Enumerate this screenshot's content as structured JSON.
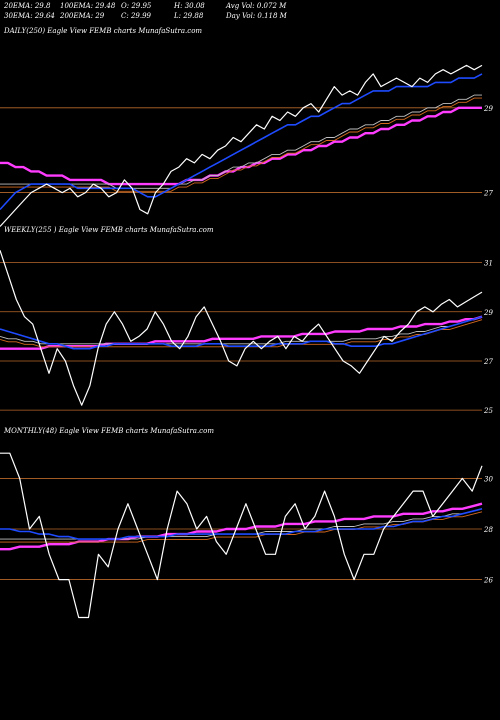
{
  "header": {
    "row1": [
      "20EMA: 29.8",
      "100EMA: 29.48",
      "O: 29.95",
      "H: 30.08",
      "Avg Vol: 0.072  M"
    ],
    "row2": [
      "30EMA: 29.64",
      "200EMA: 29",
      "C: 29.99",
      "L: 29.88",
      "Day Vol: 0.118  M"
    ]
  },
  "panels": {
    "daily": {
      "label": "DAILY(250) Eagle   View  FEMB charts MunafaSutra.com"
    },
    "weekly": {
      "label": "WEEKLY(255                ) Eagle   View  FEMB charts MunafaSutra.com"
    },
    "monthly": {
      "label": "MONTHLY(48) Eagle   View  FEMB charts MunafaSutra.com"
    }
  },
  "colors": {
    "background": "#000000",
    "price": "#ffffff",
    "ema_blue": "#1e4bff",
    "ema_pink": "#ff3cff",
    "ema_orange": "#d2691e",
    "gridline": "#b8682a",
    "ema_grey": "#c0c0c0"
  },
  "chart_data": [
    {
      "type": "line",
      "name": "daily",
      "ylim": [
        26.4,
        30.6
      ],
      "y_ticks": [
        29,
        27
      ],
      "series": [
        {
          "values": [
            26.2,
            26.4,
            26.6,
            26.8,
            27.0,
            27.1,
            27.2,
            27.1,
            27.0,
            27.1,
            26.9,
            27.0,
            27.2,
            27.1,
            26.9,
            27.0,
            27.3,
            27.1,
            26.6,
            26.5,
            27.0,
            27.2,
            27.5,
            27.6,
            27.8,
            27.7,
            27.9,
            27.8,
            28.0,
            28.1,
            28.3,
            28.2,
            28.4,
            28.6,
            28.5,
            28.8,
            28.7,
            28.9,
            28.8,
            29.0,
            29.1,
            28.9,
            29.2,
            29.5,
            29.3,
            29.4,
            29.3,
            29.6,
            29.8,
            29.5,
            29.6,
            29.7,
            29.6,
            29.5,
            29.7,
            29.6,
            29.8,
            29.9,
            29.8,
            29.9,
            30.0,
            29.9,
            30.0
          ]
        },
        {
          "values": [
            26.6,
            26.8,
            27.0,
            27.1,
            27.2,
            27.2,
            27.2,
            27.2,
            27.2,
            27.2,
            27.1,
            27.1,
            27.1,
            27.1,
            27.1,
            27.1,
            27.1,
            27.1,
            27.0,
            26.9,
            26.9,
            27.0,
            27.1,
            27.2,
            27.3,
            27.4,
            27.5,
            27.6,
            27.7,
            27.8,
            27.9,
            28.0,
            28.1,
            28.2,
            28.3,
            28.4,
            28.5,
            28.6,
            28.6,
            28.7,
            28.8,
            28.8,
            28.9,
            29.0,
            29.1,
            29.1,
            29.2,
            29.3,
            29.4,
            29.4,
            29.4,
            29.5,
            29.5,
            29.5,
            29.5,
            29.5,
            29.6,
            29.6,
            29.6,
            29.7,
            29.7,
            29.7,
            29.8
          ]
        },
        {
          "values": [
            27.2,
            27.2,
            27.2,
            27.2,
            27.2,
            27.2,
            27.2,
            27.2,
            27.2,
            27.2,
            27.2,
            27.2,
            27.2,
            27.2,
            27.2,
            27.1,
            27.1,
            27.1,
            27.1,
            27.1,
            27.1,
            27.1,
            27.1,
            27.2,
            27.2,
            27.3,
            27.3,
            27.4,
            27.4,
            27.5,
            27.6,
            27.6,
            27.7,
            27.7,
            27.8,
            27.9,
            27.9,
            28.0,
            28.0,
            28.1,
            28.2,
            28.2,
            28.3,
            28.3,
            28.4,
            28.5,
            28.5,
            28.6,
            28.6,
            28.7,
            28.7,
            28.8,
            28.8,
            28.9,
            28.9,
            29.0,
            29.0,
            29.1,
            29.1,
            29.2,
            29.2,
            29.3,
            29.3
          ]
        },
        {
          "values": [
            27.7,
            27.7,
            27.6,
            27.6,
            27.5,
            27.5,
            27.4,
            27.4,
            27.4,
            27.3,
            27.3,
            27.3,
            27.3,
            27.3,
            27.2,
            27.2,
            27.2,
            27.2,
            27.2,
            27.2,
            27.2,
            27.2,
            27.2,
            27.2,
            27.3,
            27.3,
            27.3,
            27.4,
            27.4,
            27.5,
            27.5,
            27.6,
            27.6,
            27.7,
            27.7,
            27.8,
            27.8,
            27.9,
            27.9,
            28.0,
            28.0,
            28.1,
            28.1,
            28.2,
            28.2,
            28.3,
            28.3,
            28.4,
            28.4,
            28.5,
            28.5,
            28.6,
            28.6,
            28.7,
            28.7,
            28.8,
            28.8,
            28.9,
            28.9,
            29.0,
            29.0,
            29.0,
            29.0
          ]
        }
      ]
    },
    {
      "type": "line",
      "name": "weekly",
      "ylim": [
        24.6,
        32.0
      ],
      "y_ticks": [
        31,
        29,
        27,
        25
      ],
      "series": [
        {
          "values": [
            31.5,
            30.5,
            29.5,
            28.8,
            28.5,
            27.5,
            26.5,
            27.5,
            27.0,
            26.0,
            25.2,
            26.0,
            27.5,
            28.5,
            29.0,
            28.5,
            27.8,
            28.0,
            28.3,
            29.0,
            28.5,
            27.8,
            27.5,
            28.0,
            28.8,
            29.2,
            28.5,
            27.8,
            27.0,
            26.8,
            27.5,
            27.8,
            27.5,
            27.8,
            28.0,
            27.5,
            28.0,
            27.8,
            28.2,
            28.5,
            28.0,
            27.5,
            27.0,
            26.8,
            26.5,
            27.0,
            27.5,
            28.0,
            27.8,
            28.2,
            28.5,
            29.0,
            29.2,
            29.0,
            29.3,
            29.5,
            29.2,
            29.4,
            29.6,
            29.8
          ]
        },
        {
          "values": [
            28.3,
            28.2,
            28.1,
            28.0,
            27.9,
            27.8,
            27.7,
            27.7,
            27.6,
            27.5,
            27.5,
            27.5,
            27.6,
            27.6,
            27.7,
            27.7,
            27.7,
            27.7,
            27.7,
            27.7,
            27.7,
            27.6,
            27.6,
            27.6,
            27.6,
            27.7,
            27.7,
            27.7,
            27.6,
            27.6,
            27.6,
            27.6,
            27.6,
            27.6,
            27.7,
            27.7,
            27.7,
            27.7,
            27.8,
            27.8,
            27.8,
            27.7,
            27.7,
            27.6,
            27.6,
            27.6,
            27.6,
            27.7,
            27.7,
            27.8,
            27.9,
            28.0,
            28.1,
            28.2,
            28.3,
            28.4,
            28.5,
            28.6,
            28.7,
            28.8
          ]
        },
        {
          "values": [
            28.0,
            27.9,
            27.9,
            27.8,
            27.8,
            27.7,
            27.7,
            27.7,
            27.7,
            27.7,
            27.7,
            27.7,
            27.7,
            27.7,
            27.7,
            27.7,
            27.7,
            27.7,
            27.7,
            27.7,
            27.7,
            27.7,
            27.7,
            27.7,
            27.7,
            27.7,
            27.7,
            27.7,
            27.7,
            27.7,
            27.7,
            27.7,
            27.7,
            27.7,
            27.7,
            27.8,
            27.8,
            27.8,
            27.8,
            27.8,
            27.8,
            27.8,
            27.8,
            27.9,
            27.9,
            27.9,
            27.9,
            28.0,
            28.0,
            28.1,
            28.1,
            28.2,
            28.2,
            28.3,
            28.4,
            28.4,
            28.5,
            28.6,
            28.7,
            28.8
          ]
        },
        {
          "values": [
            27.5,
            27.5,
            27.5,
            27.5,
            27.5,
            27.5,
            27.6,
            27.6,
            27.6,
            27.6,
            27.6,
            27.6,
            27.6,
            27.7,
            27.7,
            27.7,
            27.7,
            27.7,
            27.7,
            27.8,
            27.8,
            27.8,
            27.8,
            27.8,
            27.8,
            27.8,
            27.9,
            27.9,
            27.9,
            27.9,
            27.9,
            27.9,
            28.0,
            28.0,
            28.0,
            28.0,
            28.0,
            28.1,
            28.1,
            28.1,
            28.1,
            28.2,
            28.2,
            28.2,
            28.2,
            28.3,
            28.3,
            28.3,
            28.3,
            28.4,
            28.4,
            28.4,
            28.5,
            28.5,
            28.5,
            28.6,
            28.6,
            28.7,
            28.7,
            28.8
          ]
        }
      ]
    },
    {
      "type": "line",
      "name": "monthly",
      "ylim": [
        24.4,
        31.6
      ],
      "y_ticks": [
        30,
        28,
        26
      ],
      "series": [
        {
          "values": [
            31.0,
            31.0,
            30.0,
            28.0,
            28.5,
            27.0,
            26.0,
            26.0,
            24.5,
            24.5,
            27.0,
            26.5,
            28.0,
            29.0,
            28.0,
            27.0,
            26.0,
            28.0,
            29.5,
            29.0,
            28.0,
            28.5,
            27.5,
            27.0,
            28.0,
            29.0,
            28.0,
            27.0,
            27.0,
            28.5,
            29.0,
            28.0,
            28.5,
            29.5,
            28.5,
            27.0,
            26.0,
            27.0,
            27.0,
            28.0,
            28.5,
            29.0,
            29.5,
            29.5,
            28.5,
            29.0,
            29.5,
            30.0,
            29.5,
            30.5
          ]
        },
        {
          "values": [
            28.0,
            28.0,
            27.9,
            27.9,
            27.8,
            27.8,
            27.7,
            27.7,
            27.6,
            27.6,
            27.6,
            27.6,
            27.6,
            27.7,
            27.7,
            27.7,
            27.7,
            27.7,
            27.8,
            27.8,
            27.8,
            27.8,
            27.8,
            27.8,
            27.8,
            27.8,
            27.8,
            27.8,
            27.8,
            27.8,
            27.9,
            27.9,
            27.9,
            28.0,
            28.0,
            28.0,
            28.0,
            28.0,
            28.0,
            28.1,
            28.1,
            28.2,
            28.3,
            28.3,
            28.4,
            28.5,
            28.5,
            28.6,
            28.7,
            28.8
          ]
        },
        {
          "values": [
            27.6,
            27.6,
            27.6,
            27.6,
            27.6,
            27.6,
            27.6,
            27.6,
            27.6,
            27.6,
            27.6,
            27.6,
            27.6,
            27.6,
            27.6,
            27.7,
            27.7,
            27.7,
            27.7,
            27.7,
            27.7,
            27.7,
            27.8,
            27.8,
            27.8,
            27.8,
            27.8,
            27.9,
            27.9,
            27.9,
            27.9,
            28.0,
            28.0,
            28.0,
            28.1,
            28.1,
            28.1,
            28.2,
            28.2,
            28.2,
            28.3,
            28.3,
            28.4,
            28.4,
            28.5,
            28.5,
            28.6,
            28.6,
            28.7,
            28.8
          ]
        },
        {
          "values": [
            27.2,
            27.2,
            27.3,
            27.3,
            27.3,
            27.4,
            27.4,
            27.4,
            27.5,
            27.5,
            27.5,
            27.6,
            27.6,
            27.6,
            27.7,
            27.7,
            27.7,
            27.8,
            27.8,
            27.8,
            27.9,
            27.9,
            27.9,
            28.0,
            28.0,
            28.0,
            28.1,
            28.1,
            28.1,
            28.2,
            28.2,
            28.2,
            28.3,
            28.3,
            28.3,
            28.4,
            28.4,
            28.4,
            28.5,
            28.5,
            28.5,
            28.6,
            28.6,
            28.6,
            28.7,
            28.7,
            28.8,
            28.8,
            28.9,
            29.0
          ]
        }
      ]
    }
  ]
}
